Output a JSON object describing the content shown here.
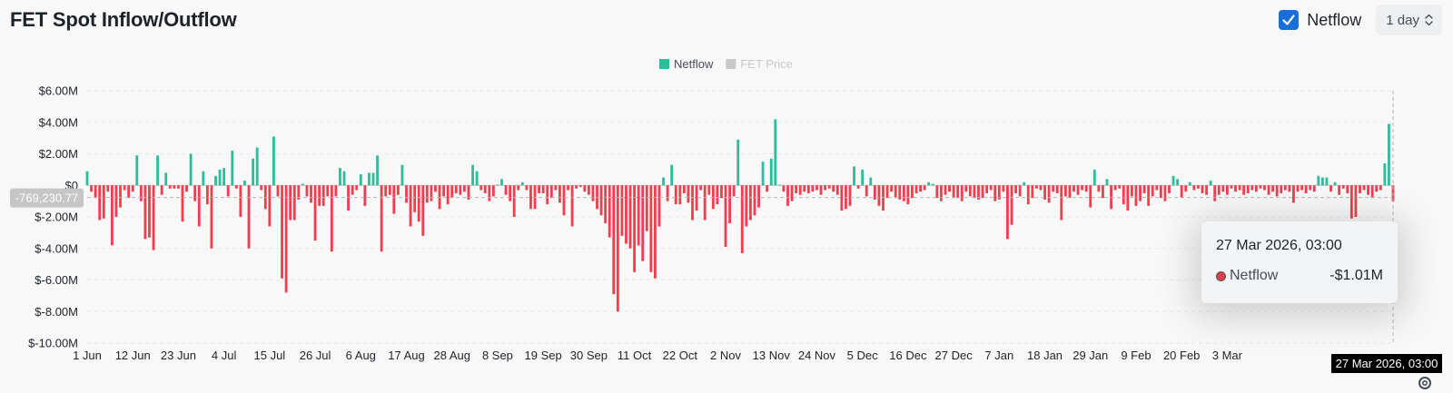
{
  "header": {
    "title": "FET Spot Inflow/Outflow",
    "netflow_toggle_label": "Netflow",
    "interval_value": "1 day"
  },
  "tooltip": {
    "date": "27 Mar 2026, 03:00",
    "series_name": "Netflow",
    "value": "-$1.01M"
  },
  "colors": {
    "positive": "#2ebd9b",
    "negative": "#f23d4f",
    "accent": "#1a6fd6",
    "legend_inactive": "#c9c9c9"
  },
  "icons": {
    "checkbox": "check-icon",
    "interval": "chevron-updown-icon",
    "settings": "gear-icon"
  },
  "chart_data": {
    "type": "bar",
    "legend": [
      {
        "name": "Netflow",
        "active": true
      },
      {
        "name": "FET Price",
        "active": false
      }
    ],
    "legend_position": "top-center",
    "ylim": [
      -10.0,
      6.0
    ],
    "y_ticks": [
      6,
      4,
      2,
      0,
      -2,
      -4,
      -6,
      -8,
      -10
    ],
    "y_tick_labels": [
      "$6.00M",
      "$4.00M",
      "$2.00M",
      "$0",
      "$-2.00M",
      "$-4.00M",
      "$-6.00M",
      "$-8.00M",
      "$-10.00M"
    ],
    "x_tick_labels": [
      "1 Jun",
      "12 Jun",
      "23 Jun",
      "4 Jul",
      "15 Jul",
      "26 Jul",
      "6 Aug",
      "17 Aug",
      "28 Aug",
      "8 Sep",
      "19 Sep",
      "30 Sep",
      "11 Oct",
      "22 Oct",
      "2 Nov",
      "13 Nov",
      "24 Nov",
      "5 Dec",
      "16 Dec",
      "27 Dec",
      "7 Jan",
      "18 Jan",
      "29 Jan",
      "9 Feb",
      "20 Feb",
      "3 Mar"
    ],
    "x_tick_step_days": 11,
    "crosshair_label": "27 Mar 2026, 03:00",
    "crosshair_value_label": "-769,230.77",
    "crosshair_value": -0.77,
    "grid": true,
    "series": [
      {
        "name": "Netflow",
        "unit": "$M",
        "values": [
          0.9,
          -0.4,
          -0.8,
          -2.2,
          -2.1,
          -0.4,
          -3.8,
          -2.0,
          -1.4,
          -0.3,
          -0.8,
          -0.4,
          1.9,
          -1.0,
          -3.4,
          -3.3,
          -4.1,
          1.9,
          -0.6,
          0.8,
          -0.2,
          -0.2,
          -0.2,
          -2.3,
          -0.4,
          2.0,
          -1.0,
          -2.6,
          0.9,
          -1.2,
          -4.0,
          0.6,
          1.0,
          1.1,
          -0.7,
          2.2,
          -0.2,
          -2.0,
          0.3,
          -4.0,
          1.7,
          2.4,
          -0.3,
          -1.5,
          -2.6,
          3.1,
          -0.7,
          -5.9,
          -6.8,
          -2.2,
          -2.2,
          -0.9,
          0.1,
          -0.7,
          -1.1,
          -3.5,
          -1.3,
          -1.3,
          -0.7,
          -4.2,
          -0.7,
          1.1,
          0.9,
          -1.6,
          -0.6,
          -0.3,
          0.7,
          -1.3,
          0.8,
          0.8,
          1.9,
          -4.2,
          -0.7,
          -0.6,
          -1.8,
          -0.6,
          1.3,
          -1.1,
          -2.6,
          -1.7,
          -2.3,
          -3.2,
          -1.1,
          -1.0,
          -0.4,
          -1.5,
          -0.7,
          -1.2,
          -0.8,
          -0.5,
          -0.6,
          -0.4,
          -0.9,
          1.3,
          0.9,
          -0.3,
          -0.5,
          -1.0,
          -0.7,
          0.0,
          0.4,
          -0.6,
          -1.0,
          -2.0,
          -0.3,
          0.2,
          -0.3,
          -1.5,
          -1.5,
          -0.5,
          -0.5,
          -1.2,
          -0.8,
          -0.3,
          -1.1,
          -1.9,
          -0.3,
          -2.6,
          -0.2,
          -0.1,
          -0.4,
          -0.6,
          -1.0,
          -1.5,
          -1.9,
          -2.4,
          -3.3,
          -6.9,
          -8.0,
          -3.2,
          -3.7,
          -4.0,
          -5.5,
          -3.8,
          -4.8,
          -2.9,
          -5.5,
          -5.9,
          -2.6,
          0.5,
          -1.0,
          1.3,
          -1.2,
          -1.2,
          -0.5,
          -1.1,
          -2.2,
          -1.6,
          -0.3,
          -2.2,
          -0.6,
          -1.5,
          -1.2,
          -0.8,
          -3.9,
          -2.4,
          -0.7,
          2.9,
          -4.3,
          -2.6,
          -2.2,
          -1.9,
          -1.4,
          1.5,
          -0.4,
          1.7,
          4.2,
          0.0,
          -0.4,
          -1.3,
          -1.0,
          -0.5,
          -0.6,
          -0.4,
          -0.5,
          -0.4,
          -0.3,
          -0.6,
          -0.3,
          -0.2,
          -0.4,
          -0.6,
          -1.6,
          -1.5,
          -1.3,
          1.2,
          -0.2,
          1.0,
          -0.7,
          0.5,
          -0.9,
          -1.3,
          -1.6,
          -0.8,
          -0.4,
          -0.8,
          -0.9,
          -1.0,
          -1.2,
          -0.8,
          -0.5,
          -0.4,
          -0.3,
          0.2,
          0.1,
          -0.8,
          -1.0,
          -0.6,
          -0.4,
          -0.8,
          -0.8,
          -1.0,
          -0.4,
          -0.7,
          -0.8,
          -0.9,
          -0.8,
          -0.5,
          -0.3,
          -1.0,
          -0.9,
          -0.4,
          -3.4,
          -2.5,
          -0.5,
          -0.7,
          0.2,
          -1.2,
          -0.8,
          -0.2,
          -0.3,
          -0.9,
          -1.1,
          -0.4,
          -0.5,
          -2.2,
          -0.7,
          -0.8,
          -0.4,
          -0.6,
          -0.3,
          -0.4,
          -1.4,
          1.0,
          -0.4,
          -0.8,
          0.4,
          -1.5,
          -0.3,
          -0.2,
          -1.2,
          -1.6,
          -0.7,
          -1.3,
          -1.0,
          -0.5,
          -1.3,
          -0.7,
          -0.3,
          -0.8,
          -1.0,
          -0.5,
          0.6,
          0.4,
          -0.8,
          -0.4,
          0.2,
          -0.3,
          -0.2,
          -0.5,
          -0.6,
          0.3,
          -1.0,
          -0.6,
          -0.4,
          -0.6,
          -0.2,
          -0.4,
          -0.3,
          -0.6,
          -0.5,
          -0.3,
          -0.4,
          -0.2,
          -0.3,
          -0.6,
          -0.4,
          -0.7,
          -0.5,
          -0.3,
          -0.4,
          -1.1,
          -0.4,
          -0.3,
          -0.5,
          -0.3,
          -0.4,
          0.6,
          0.5,
          0.5,
          -0.4,
          0.2,
          -0.6,
          -0.2,
          -0.5,
          -2.1,
          -2.0,
          -0.5,
          -0.3,
          -0.6,
          -0.8,
          -0.4,
          -0.3,
          1.4,
          3.9,
          -1.01
        ]
      }
    ]
  }
}
